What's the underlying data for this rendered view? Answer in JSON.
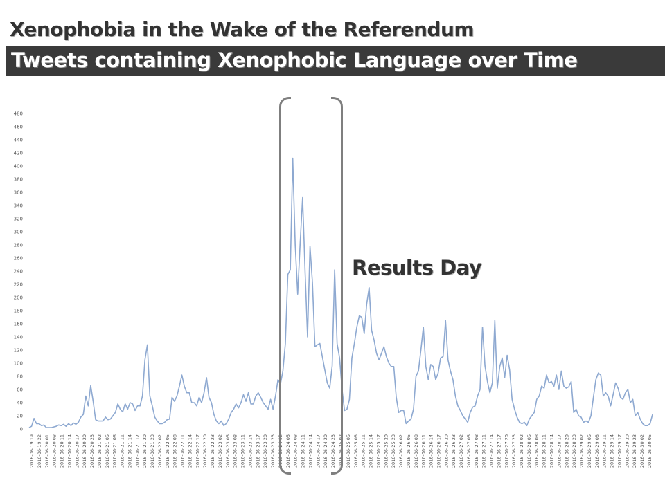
{
  "slide": {
    "title": "Xenophobia in the Wake of the Referendum",
    "subtitle": "Tweets containing Xenophobic Language over Time",
    "annotation": "Results Day"
  },
  "colors": {
    "line": "#8ea9d1",
    "subtitle_bg": "#3a3a3a",
    "bracket": "#7f7f7f"
  },
  "chart_data": {
    "type": "line",
    "ylim": [
      0,
      480
    ],
    "y_ticks": [
      "0",
      "20",
      "40",
      "60",
      "80",
      "100",
      "120",
      "140",
      "160",
      "180",
      "200",
      "220",
      "240",
      "260",
      "280",
      "300",
      "320",
      "340",
      "360",
      "380",
      "400",
      "420",
      "440",
      "460",
      "480"
    ],
    "grid": false,
    "x_tick_labels": [
      "2016-06-19 19",
      "2016-06-19 22",
      "2016-06-20 01",
      "2016-06-20 08",
      "2016-06-20 11",
      "2016-06-20 14",
      "2016-06-20 17",
      "2016-06-20 20",
      "2016-06-20 23",
      "2016-06-21 02",
      "2016-06-21 05",
      "2016-06-21 08",
      "2016-06-21 11",
      "2016-06-21 14",
      "2016-06-21 17",
      "2016-06-21 20",
      "2016-06-21 23",
      "2016-06-22 02",
      "2016-06-22 05",
      "2016-06-22 08",
      "2016-06-22 11",
      "2016-06-22 14",
      "2016-06-22 17",
      "2016-06-22 20",
      "2016-06-22 23",
      "2016-06-23 02",
      "2016-06-23 05",
      "2016-06-23 08",
      "2016-06-23 11",
      "2016-06-23 14",
      "2016-06-23 17",
      "2016-06-23 20",
      "2016-06-23 23",
      "2016-06-24 02",
      "2016-06-24 05",
      "2016-06-24 08",
      "2016-06-24 11",
      "2016-06-24 14",
      "2016-06-24 17",
      "2016-06-24 20",
      "2016-06-24 23",
      "2016-06-25 02",
      "2016-06-25 05",
      "2016-06-25 08",
      "2016-06-25 11",
      "2016-06-25 14",
      "2016-06-25 17",
      "2016-06-25 20",
      "2016-06-25 23",
      "2016-06-26 02",
      "2016-06-26 05",
      "2016-06-26 08",
      "2016-06-26 11",
      "2016-06-26 14",
      "2016-06-26 17",
      "2016-06-26 20",
      "2016-06-26 23",
      "2016-06-27 02",
      "2016-06-27 05",
      "2016-06-27 08",
      "2016-06-27 11",
      "2016-06-27 14",
      "2016-06-27 17",
      "2016-06-27 20",
      "2016-06-27 23",
      "2016-06-28 02",
      "2016-06-28 05",
      "2016-06-28 08",
      "2016-06-28 11",
      "2016-06-28 14",
      "2016-06-28 17",
      "2016-06-28 20",
      "2016-06-28 23",
      "2016-06-29 02",
      "2016-06-29 05",
      "2016-06-29 08",
      "2016-06-29 11",
      "2016-06-29 14",
      "2016-06-29 17",
      "2016-06-29 20",
      "2016-06-29 23",
      "2016-06-30 02",
      "2016-06-30 05"
    ],
    "series": [
      {
        "values": [
          2,
          4,
          16,
          8,
          8,
          5,
          6,
          2,
          2,
          2,
          3,
          4,
          6,
          5,
          7,
          4,
          8,
          5,
          9,
          7,
          10,
          18,
          22,
          50,
          35,
          66,
          42,
          14,
          12,
          12,
          12,
          18,
          14,
          15,
          20,
          25,
          38,
          30,
          26,
          38,
          30,
          40,
          38,
          28,
          35,
          35,
          50,
          105,
          128,
          50,
          35,
          18,
          12,
          8,
          8,
          10,
          14,
          15,
          48,
          42,
          50,
          65,
          82,
          65,
          55,
          55,
          40,
          40,
          35,
          48,
          40,
          55,
          78,
          48,
          40,
          22,
          12,
          8,
          12,
          5,
          8,
          15,
          25,
          30,
          38,
          32,
          40,
          52,
          42,
          55,
          38,
          38,
          50,
          55,
          48,
          40,
          35,
          30,
          45,
          30,
          50,
          75,
          68,
          88,
          130,
          235,
          242,
          412,
          280,
          205,
          282,
          352,
          240,
          140,
          278,
          222,
          125,
          128,
          130,
          110,
          90,
          70,
          62,
          96,
          242,
          130,
          108,
          60,
          28,
          30,
          45,
          108,
          130,
          155,
          172,
          170,
          145,
          190,
          215,
          150,
          135,
          115,
          105,
          115,
          125,
          110,
          100,
          95,
          95,
          48,
          25,
          28,
          28,
          8,
          12,
          15,
          30,
          80,
          88,
          120,
          155,
          95,
          75,
          98,
          95,
          75,
          85,
          108,
          110,
          165,
          105,
          88,
          75,
          50,
          35,
          28,
          20,
          15,
          10,
          25,
          33,
          35,
          50,
          60,
          155,
          96,
          72,
          55,
          70,
          165,
          62,
          95,
          108,
          78,
          112,
          90,
          45,
          30,
          18,
          10,
          8,
          10,
          5,
          15,
          20,
          25,
          45,
          50,
          65,
          62,
          82,
          70,
          72,
          65,
          82,
          60,
          88,
          65,
          62,
          64,
          72,
          25,
          30,
          20,
          18,
          10,
          12,
          10,
          20,
          48,
          75,
          85,
          82,
          50,
          55,
          50,
          35,
          52,
          70,
          62,
          48,
          45,
          55,
          60,
          40,
          45,
          20,
          25,
          15,
          8,
          5,
          5,
          8,
          22
        ]
      }
    ]
  }
}
